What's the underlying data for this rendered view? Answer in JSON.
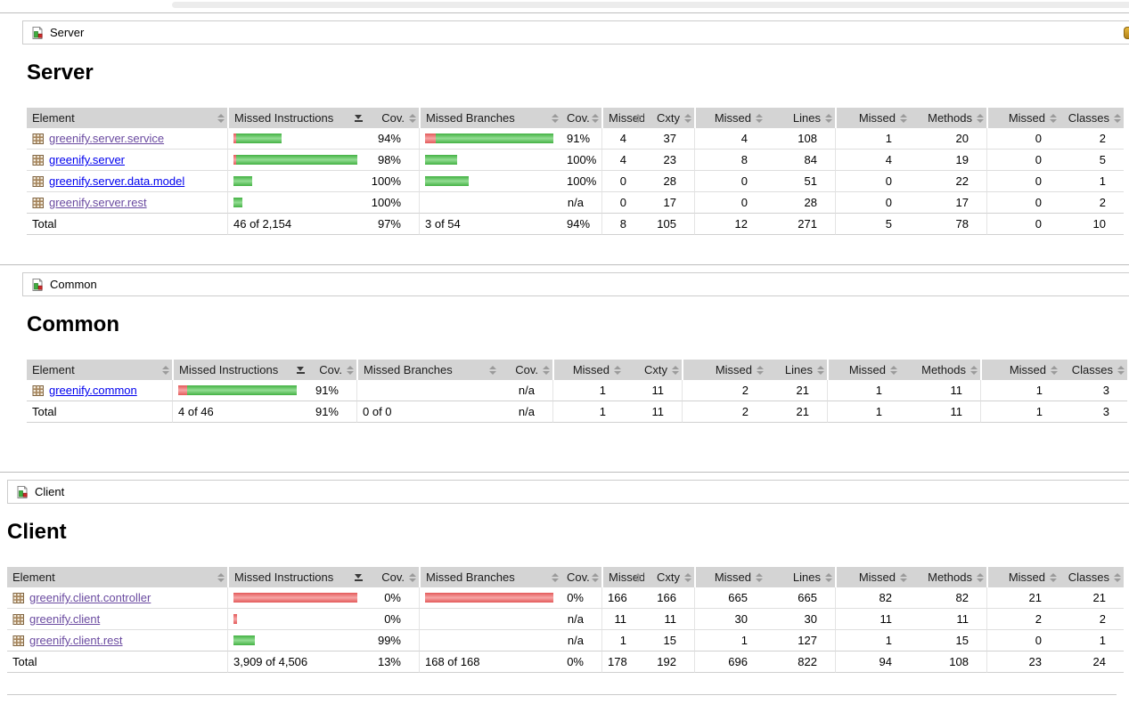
{
  "colors": {
    "covered_green": "#43B143",
    "missed_red": "#E25959",
    "link_blue": "#0000EE",
    "link_visited_purple": "#6A4AA0",
    "table_header_bg": "#D4D4D4"
  },
  "columns": [
    "Element",
    "Missed Instructions",
    "Cov.",
    "Missed Branches",
    "Cov.",
    "Missed",
    "Cxty",
    "Missed",
    "Lines",
    "Missed",
    "Methods",
    "Missed",
    "Classes"
  ],
  "sorted_column_index": 1,
  "sort_direction": "desc",
  "sections": [
    {
      "id": "server",
      "breadcrumb": "Server",
      "title": "Server",
      "has_session_icon": true,
      "rows": [
        {
          "name": "greenify.server.service",
          "visited": true,
          "instr_bar": {
            "red": 3,
            "green": 51
          },
          "instr_cov": "94%",
          "branch_bar": {
            "red": 12,
            "green": 132
          },
          "branch_cov": "91%",
          "cells": [
            "4",
            "37",
            "4",
            "108",
            "1",
            "20",
            "0",
            "2"
          ]
        },
        {
          "name": "greenify.server",
          "visited": false,
          "instr_bar": {
            "red": 3,
            "green": 136
          },
          "instr_cov": "98%",
          "branch_bar": {
            "red": 0,
            "green": 36
          },
          "branch_cov": "100%",
          "cells": [
            "4",
            "23",
            "8",
            "84",
            "4",
            "19",
            "0",
            "5"
          ]
        },
        {
          "name": "greenify.server.data.model",
          "visited": false,
          "instr_bar": {
            "red": 0,
            "green": 21
          },
          "instr_cov": "100%",
          "branch_bar": {
            "red": 0,
            "green": 49
          },
          "branch_cov": "100%",
          "cells": [
            "0",
            "28",
            "0",
            "51",
            "0",
            "22",
            "0",
            "1"
          ]
        },
        {
          "name": "greenify.server.rest",
          "visited": true,
          "instr_bar": {
            "red": 0,
            "green": 10
          },
          "instr_cov": "100%",
          "branch_bar": null,
          "branch_cov": "n/a",
          "cells": [
            "0",
            "17",
            "0",
            "28",
            "0",
            "17",
            "0",
            "2"
          ]
        }
      ],
      "total": {
        "label": "Total",
        "instr": "46 of 2,154",
        "instr_cov": "97%",
        "branch": "3 of 54",
        "branch_cov": "94%",
        "cells": [
          "8",
          "105",
          "12",
          "271",
          "5",
          "78",
          "0",
          "10"
        ]
      }
    },
    {
      "id": "common",
      "breadcrumb": "Common",
      "title": "Common",
      "has_session_icon": false,
      "rows": [
        {
          "name": "greenify.common",
          "visited": false,
          "instr_bar": {
            "red": 10,
            "green": 123
          },
          "instr_cov": "91%",
          "branch_bar": null,
          "branch_cov": "n/a",
          "cells": [
            "1",
            "11",
            "2",
            "21",
            "1",
            "11",
            "1",
            "3"
          ]
        }
      ],
      "total": {
        "label": "Total",
        "instr": "4 of 46",
        "instr_cov": "91%",
        "branch": "0 of 0",
        "branch_cov": "n/a",
        "cells": [
          "1",
          "11",
          "2",
          "21",
          "1",
          "11",
          "1",
          "3"
        ]
      }
    },
    {
      "id": "client",
      "breadcrumb": "Client",
      "title": "Client",
      "has_session_icon": false,
      "rows": [
        {
          "name": "greenify.client.controller",
          "visited": true,
          "instr_bar": {
            "red": 139,
            "green": 0
          },
          "instr_cov": "0%",
          "branch_bar": {
            "red": 144,
            "green": 0
          },
          "branch_cov": "0%",
          "cells": [
            "166",
            "166",
            "665",
            "665",
            "82",
            "82",
            "21",
            "21"
          ]
        },
        {
          "name": "greenify.client",
          "visited": true,
          "instr_bar": {
            "red": 4,
            "green": 0
          },
          "instr_cov": "0%",
          "branch_bar": null,
          "branch_cov": "n/a",
          "cells": [
            "11",
            "11",
            "30",
            "30",
            "11",
            "11",
            "2",
            "2"
          ]
        },
        {
          "name": "greenify.client.rest",
          "visited": true,
          "instr_bar": {
            "red": 0,
            "green": 24
          },
          "instr_cov": "99%",
          "branch_bar": null,
          "branch_cov": "n/a",
          "cells": [
            "1",
            "15",
            "1",
            "127",
            "1",
            "15",
            "0",
            "1"
          ]
        }
      ],
      "total": {
        "label": "Total",
        "instr": "3,909 of 4,506",
        "instr_cov": "13%",
        "branch": "168 of 168",
        "branch_cov": "0%",
        "cells": [
          "178",
          "192",
          "696",
          "822",
          "94",
          "108",
          "23",
          "24"
        ]
      }
    }
  ]
}
